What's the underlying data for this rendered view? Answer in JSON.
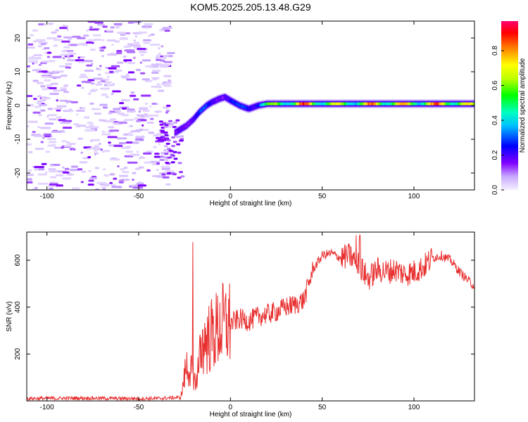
{
  "title": "KOM5.2025.205.13.48.G29",
  "chart_data": [
    {
      "type": "heatmap",
      "xlabel": "Height of straight line (km)",
      "ylabel": "Frequency (Hz)",
      "xlim": [
        -111,
        133
      ],
      "ylim": [
        -25,
        25
      ],
      "x_ticks": [
        "-100",
        "-50",
        "0",
        "50",
        "100"
      ],
      "x_tick_values": [
        -100,
        -50,
        0,
        50,
        100
      ],
      "y_ticks": [
        "-20",
        "-10",
        "0",
        "10",
        "20"
      ],
      "y_tick_values": [
        -20,
        -10,
        0,
        10,
        20
      ],
      "colorbar": {
        "label": "Normalized spectral amplitude",
        "range": [
          0,
          0.97
        ],
        "ticks": [
          "0.0",
          "0.2",
          "0.4",
          "0.6",
          "0.8"
        ],
        "tick_values": [
          0,
          0.2,
          0.4,
          0.6,
          0.8
        ],
        "colormap": [
          "#f0f0ff",
          "#8000ff",
          "#0000ff",
          "#00ffff",
          "#00ff00",
          "#ffff00",
          "#ff8000",
          "#ff0000",
          "#ff0080"
        ]
      },
      "ridge": {
        "points": [
          [
            -30,
            -8
          ],
          [
            -27,
            -7
          ],
          [
            -24,
            -6
          ],
          [
            -20,
            -4
          ],
          [
            -17,
            -2
          ],
          [
            -13,
            0
          ],
          [
            -10,
            1
          ],
          [
            -6,
            2
          ],
          [
            -3,
            2.5
          ],
          [
            0,
            1.5
          ],
          [
            5,
            0
          ],
          [
            10,
            -1
          ],
          [
            15,
            0
          ],
          [
            20,
            0.5
          ],
          [
            40,
            0.5
          ],
          [
            60,
            0.5
          ],
          [
            80,
            0.5
          ],
          [
            100,
            0.5
          ],
          [
            120,
            0.5
          ],
          [
            133,
            0.5
          ]
        ],
        "amplitude": [
          0.15,
          0.25,
          0.3,
          0.35,
          0.35,
          0.3,
          0.25,
          0.3,
          0.35,
          0.3,
          0.3,
          0.35,
          0.5,
          0.6,
          0.9,
          0.7,
          0.9,
          0.8,
          0.9,
          0.7
        ]
      },
      "noise_region": {
        "x": [
          -111,
          -32
        ],
        "y": [
          -25,
          25
        ],
        "amplitude": [
          0.02,
          0.15
        ]
      }
    },
    {
      "type": "line",
      "xlabel": "Height of straight line (km)",
      "ylabel": "SNR (v/v)",
      "xlim": [
        -111,
        133
      ],
      "ylim": [
        0,
        720
      ],
      "x_ticks": [
        "-100",
        "-50",
        "0",
        "50",
        "100"
      ],
      "x_tick_values": [
        -100,
        -50,
        0,
        50,
        100
      ],
      "y_ticks": [
        "200",
        "400",
        "600"
      ],
      "y_tick_values": [
        200,
        400,
        600
      ],
      "color": "#e83030",
      "series_envelope": {
        "x": [
          -111,
          -80,
          -60,
          -40,
          -27,
          -24,
          -21,
          -19,
          -15,
          -10,
          -5,
          0,
          5,
          10,
          15,
          20,
          25,
          30,
          35,
          40,
          45,
          50,
          55,
          60,
          65,
          70,
          75,
          80,
          85,
          90,
          95,
          100,
          105,
          110,
          115,
          120,
          125,
          130,
          133
        ],
        "y": [
          10,
          12,
          10,
          10,
          15,
          150,
          120,
          80,
          250,
          280,
          320,
          330,
          350,
          340,
          360,
          370,
          380,
          400,
          410,
          430,
          560,
          620,
          630,
          610,
          620,
          580,
          520,
          560,
          550,
          560,
          540,
          550,
          570,
          610,
          620,
          600,
          550,
          510,
          490
        ]
      }
    }
  ]
}
